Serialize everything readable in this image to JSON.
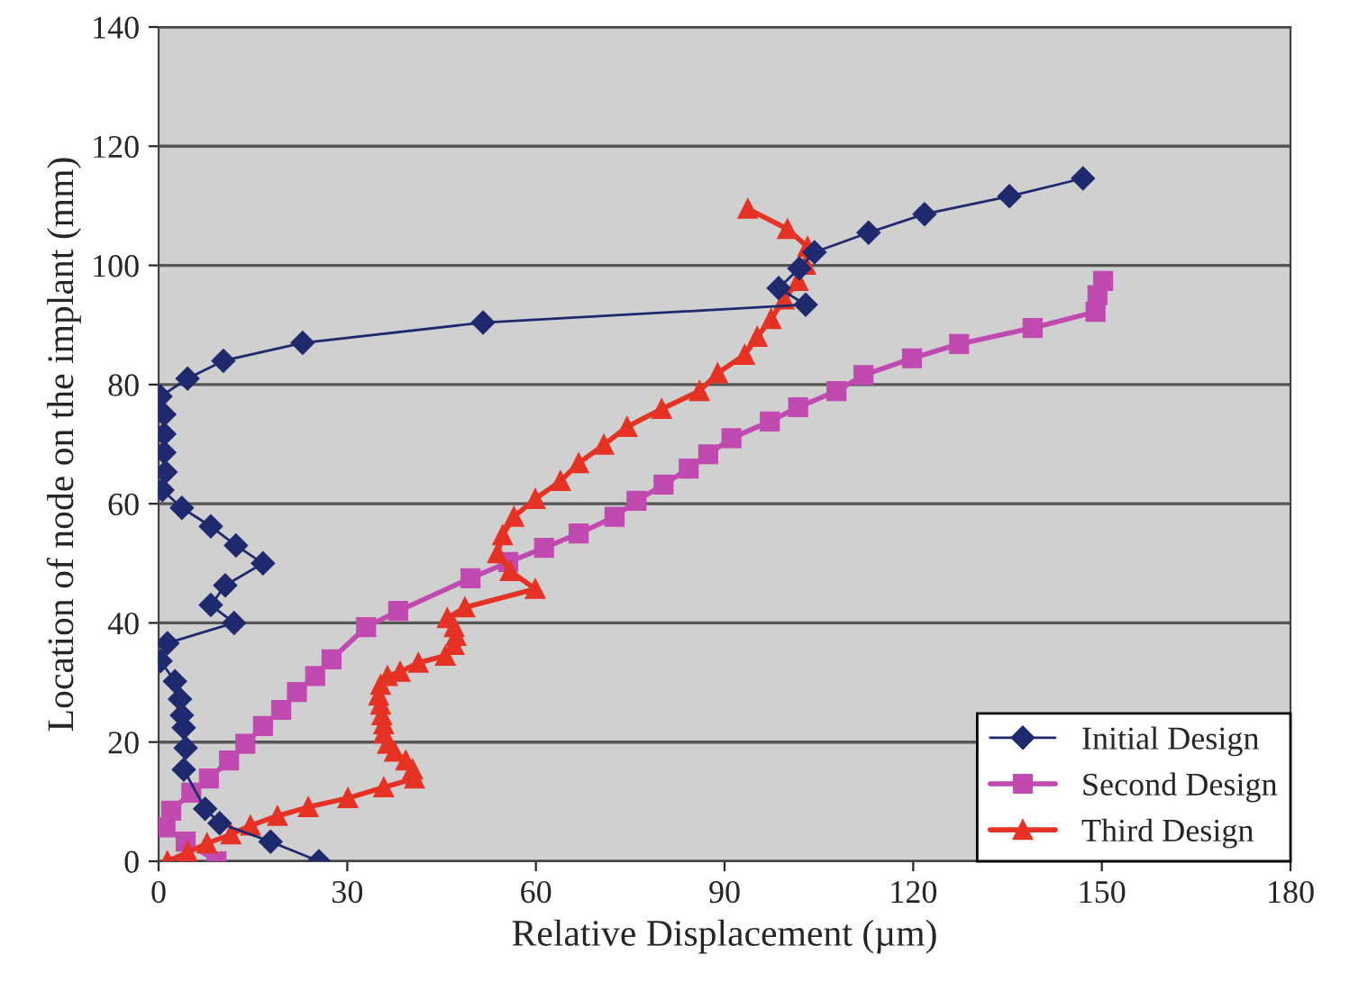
{
  "chart_data": {
    "type": "line",
    "xlabel": "Relative Displacement (µm)",
    "ylabel": "Location of node on the implant (mm)",
    "xlim": [
      0,
      180
    ],
    "xticks": [
      0,
      30,
      60,
      90,
      120,
      150,
      180
    ],
    "ylim": [
      0,
      140
    ],
    "yticks": [
      0,
      20,
      40,
      60,
      80,
      100,
      120,
      140
    ],
    "grid": "y",
    "legend": "bottom right",
    "series": [
      {
        "name": "Initial Design",
        "color": "#1f2a6e",
        "marker": "diamond",
        "x": [
          25.5,
          17.8,
          9.7,
          7.4,
          4,
          4.3,
          4,
          3.7,
          3.4,
          2.6,
          0.3,
          1.4,
          12,
          8.3,
          10.6,
          16.6,
          12.3,
          8.3,
          3.7,
          0.6,
          1.1,
          0.9,
          0.9,
          0.9,
          0.3,
          4.6,
          10.3,
          22.9,
          51.6,
          102.9,
          98.6,
          101.9,
          104.3,
          112.9,
          121.8,
          135.3,
          147
        ],
        "values": [
          0,
          3.3,
          6.4,
          8.8,
          15.4,
          19,
          22.4,
          24.5,
          27.2,
          30.2,
          33.6,
          36.6,
          40,
          43,
          46.3,
          50,
          53,
          56.2,
          59.3,
          62.3,
          65.3,
          68.6,
          71.7,
          75,
          78,
          81,
          84,
          87,
          90.4,
          93.4,
          96.2,
          99.5,
          102.2,
          105.5,
          108.6,
          111.6,
          114.6
        ]
      },
      {
        "name": "Second Design",
        "color": "#c04ab0",
        "marker": "square",
        "x": [
          9.2,
          4.3,
          1.1,
          2,
          5.2,
          8,
          11.2,
          13.8,
          16.6,
          19.5,
          22,
          24.9,
          27.5,
          33,
          38.1,
          49.6,
          55.6,
          61.3,
          66.8,
          72.5,
          76,
          80.3,
          84.3,
          87.4,
          91.1,
          97.2,
          101.7,
          107.8,
          112.1,
          119.8,
          127.3,
          139,
          149,
          149.3,
          150.2
        ],
        "values": [
          0,
          3.3,
          5.7,
          8.5,
          11.5,
          13.9,
          16.9,
          19.7,
          22.7,
          25.4,
          28.4,
          31.1,
          33.9,
          39.3,
          42,
          47.5,
          50.2,
          52.6,
          55,
          57.8,
          60.5,
          63.2,
          65.9,
          68.3,
          71,
          73.8,
          76.2,
          78.9,
          81.6,
          84.4,
          86.8,
          89.5,
          92.2,
          95,
          97.4
        ]
      },
      {
        "name": "Third Design",
        "color": "#e53224",
        "marker": "triangle",
        "x": [
          1.4,
          4.6,
          7.7,
          11.5,
          14.6,
          18.9,
          23.8,
          30.1,
          35.8,
          40.7,
          40.4,
          39.3,
          37.5,
          36.4,
          35.8,
          35.8,
          35.5,
          35.3,
          35,
          35.3,
          36.4,
          38.4,
          41.3,
          45.6,
          47,
          47.3,
          47,
          45.9,
          48.7,
          59.9,
          55.9,
          53.9,
          54.7,
          56.5,
          59.9,
          63.9,
          66.8,
          70.8,
          74.5,
          80,
          86,
          88.9,
          93.2,
          95.2,
          97.4,
          99.5,
          101.7,
          102.9,
          103.2,
          100,
          93.7
        ],
        "values": [
          0,
          1.5,
          3,
          4.5,
          6,
          7.6,
          9.1,
          10.6,
          12.4,
          13.9,
          15.4,
          16.9,
          18.4,
          19.7,
          21.5,
          23,
          24.5,
          26.3,
          27.8,
          29.6,
          31.1,
          31.8,
          33.3,
          34.5,
          36.3,
          37.8,
          39.3,
          40.8,
          42.6,
          45.7,
          48.7,
          51.7,
          54.7,
          57.8,
          60.8,
          63.8,
          66.8,
          69.9,
          72.9,
          75.9,
          78.9,
          81.9,
          85,
          88,
          91,
          94.3,
          97.4,
          100.1,
          103.1,
          106.1,
          109.5
        ]
      }
    ]
  }
}
